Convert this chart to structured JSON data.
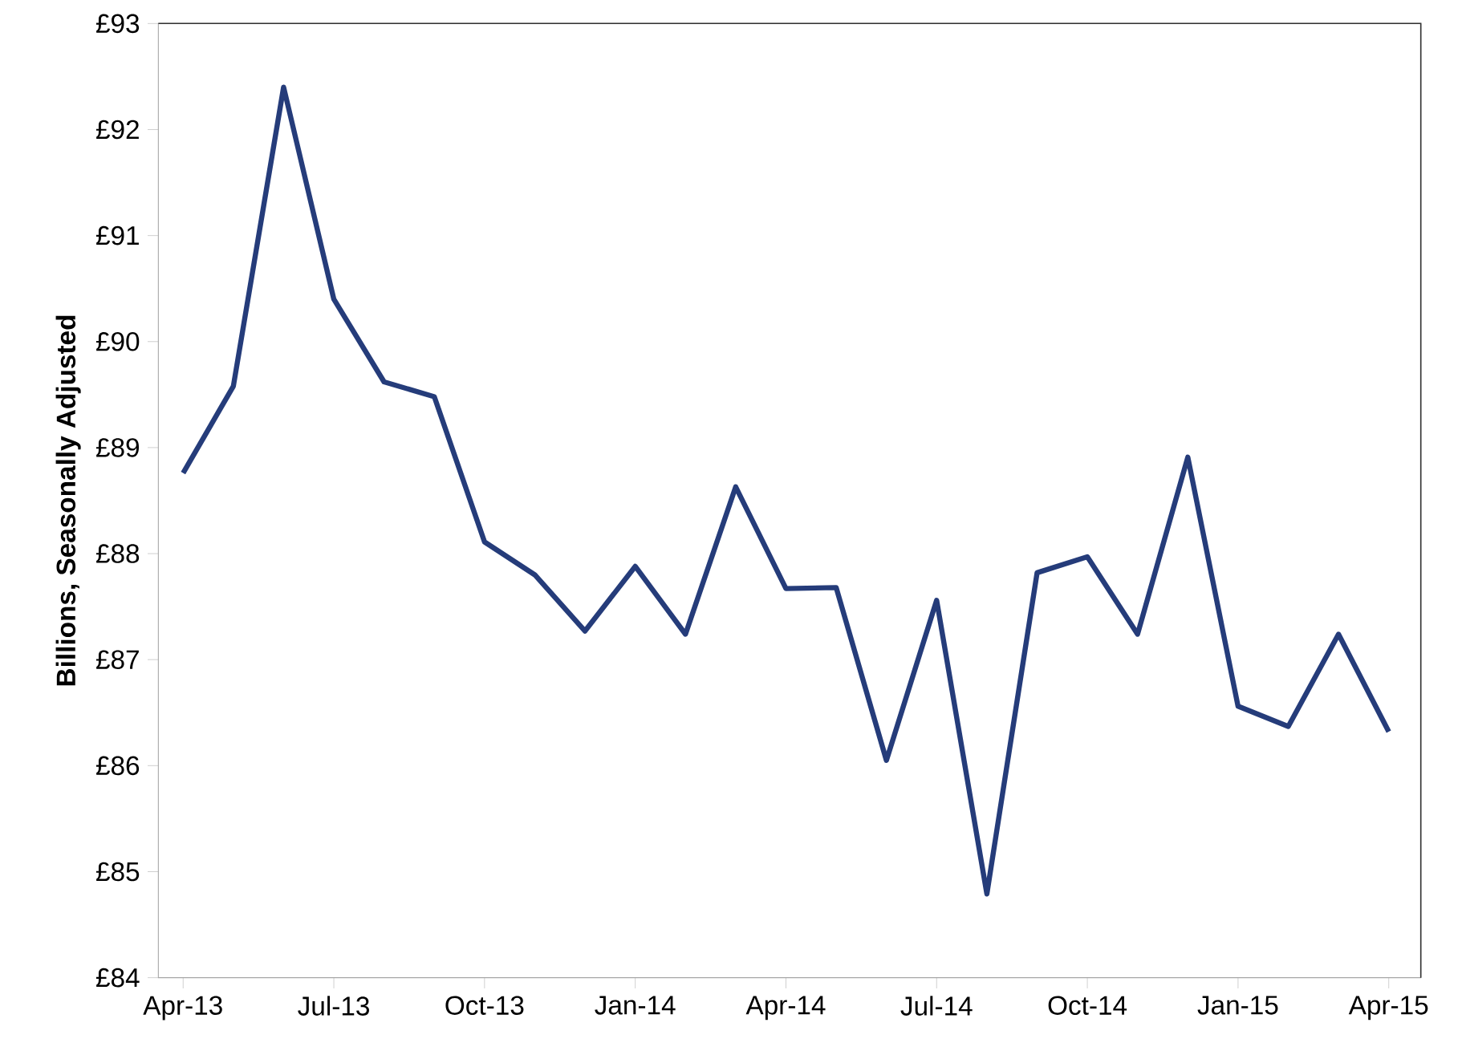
{
  "chart_data": {
    "type": "line",
    "ylabel": "Billions,  Seasonally Adjusted",
    "x": [
      "2013-04-16",
      "2013-05-16",
      "2013-06-16",
      "2013-07-16",
      "2013-08-16",
      "2013-09-16",
      "2013-10-16",
      "2013-11-16",
      "2013-12-16",
      "2014-01-16",
      "2014-02-16",
      "2014-03-16",
      "2014-04-16",
      "2014-05-16",
      "2014-06-16",
      "2014-07-16",
      "2014-08-16",
      "2014-09-16",
      "2014-10-16",
      "2014-11-16",
      "2014-12-16",
      "2015-01-16",
      "2015-02-16",
      "2015-03-16",
      "2015-04-16"
    ],
    "series": [
      {
        "color": "#253c7a",
        "values": [
          88.76,
          89.58,
          92.4,
          90.4,
          89.62,
          89.48,
          88.11,
          87.8,
          87.27,
          87.88,
          87.24,
          88.63,
          87.67,
          87.68,
          86.05,
          87.56,
          84.79,
          87.82,
          87.97,
          87.24,
          88.91,
          86.56,
          86.37,
          87.24,
          86.32
        ]
      }
    ],
    "xlim": [
      "2013-04-01",
      "2015-05-05"
    ],
    "xticks": [
      {
        "value": "2013-04-16",
        "label": "Apr-13"
      },
      {
        "value": "2013-07-16",
        "label": "Jul-13"
      },
      {
        "value": "2013-10-16",
        "label": "Oct-13"
      },
      {
        "value": "2014-01-16",
        "label": "Jan-14"
      },
      {
        "value": "2014-04-16",
        "label": "Apr-14"
      },
      {
        "value": "2014-07-16",
        "label": "Jul-14"
      },
      {
        "value": "2014-10-16",
        "label": "Oct-14"
      },
      {
        "value": "2015-01-16",
        "label": "Jan-15"
      },
      {
        "value": "2015-04-16",
        "label": "Apr-15"
      }
    ],
    "ylim": [
      84,
      93
    ],
    "yticks": [
      {
        "value": 84,
        "label": "£84"
      },
      {
        "value": 85,
        "label": "£85"
      },
      {
        "value": 86,
        "label": "£86"
      },
      {
        "value": 87,
        "label": "£87"
      },
      {
        "value": 88,
        "label": "£88"
      },
      {
        "value": 89,
        "label": "£89"
      },
      {
        "value": 90,
        "label": "£90"
      },
      {
        "value": 91,
        "label": "£91"
      },
      {
        "value": 92,
        "label": "£92"
      },
      {
        "value": 93,
        "label": "£93"
      }
    ],
    "marker": "none",
    "line_style": "solid"
  }
}
